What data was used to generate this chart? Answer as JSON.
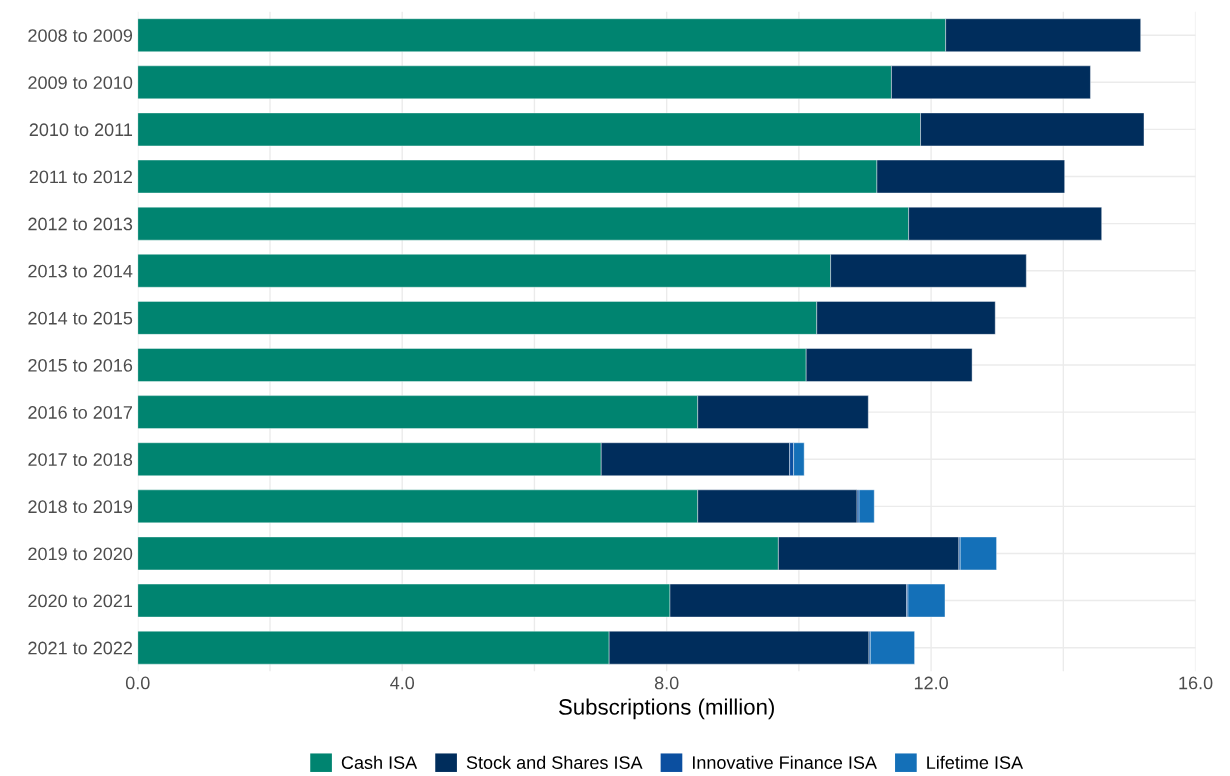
{
  "chart_data": {
    "type": "bar",
    "orientation": "horizontal",
    "stacked": true,
    "xlabel": "Subscriptions (million)",
    "categories": [
      "2008 to 2009",
      "2009 to 2010",
      "2010 to 2011",
      "2011 to 2012",
      "2012 to 2013",
      "2013 to 2014",
      "2014 to 2015",
      "2015 to 2016",
      "2016 to 2017",
      "2017 to 2018",
      "2018 to 2019",
      "2019 to 2020",
      "2020 to 2021",
      "2021 to 2022"
    ],
    "series": [
      {
        "name": "Cash ISA",
        "color": "#008470",
        "values": [
          12.22,
          11.4,
          11.84,
          11.18,
          11.66,
          10.48,
          10.27,
          10.11,
          8.47,
          7.01,
          8.47,
          9.69,
          8.05,
          7.13
        ]
      },
      {
        "name": "Stock and Shares ISA",
        "color": "#002d5c",
        "values": [
          2.95,
          3.01,
          3.38,
          2.84,
          2.92,
          2.96,
          2.7,
          2.51,
          2.58,
          2.85,
          2.41,
          2.73,
          3.58,
          3.93
        ]
      },
      {
        "name": "Innovative Finance ISA",
        "color": "#0b4fa0",
        "values": [
          null,
          null,
          null,
          null,
          null,
          null,
          null,
          null,
          null,
          0.06,
          0.03,
          0.02,
          0.02,
          0.02
        ]
      },
      {
        "name": "Lifetime ISA",
        "color": "#1470b8",
        "values": [
          null,
          null,
          null,
          null,
          null,
          null,
          null,
          null,
          null,
          0.16,
          0.23,
          0.55,
          0.56,
          0.67
        ]
      }
    ],
    "xlim": [
      0,
      16
    ],
    "xticks": [
      {
        "value": 0,
        "label": "0.0"
      },
      {
        "value": 2,
        "label": null
      },
      {
        "value": 4,
        "label": "4.0"
      },
      {
        "value": 6,
        "label": null
      },
      {
        "value": 8,
        "label": "8.0"
      },
      {
        "value": 10,
        "label": null
      },
      {
        "value": 12,
        "label": "12.0"
      },
      {
        "value": 14,
        "label": null
      },
      {
        "value": 16,
        "label": "16.0"
      }
    ],
    "grid": true,
    "legend": "bottom"
  }
}
